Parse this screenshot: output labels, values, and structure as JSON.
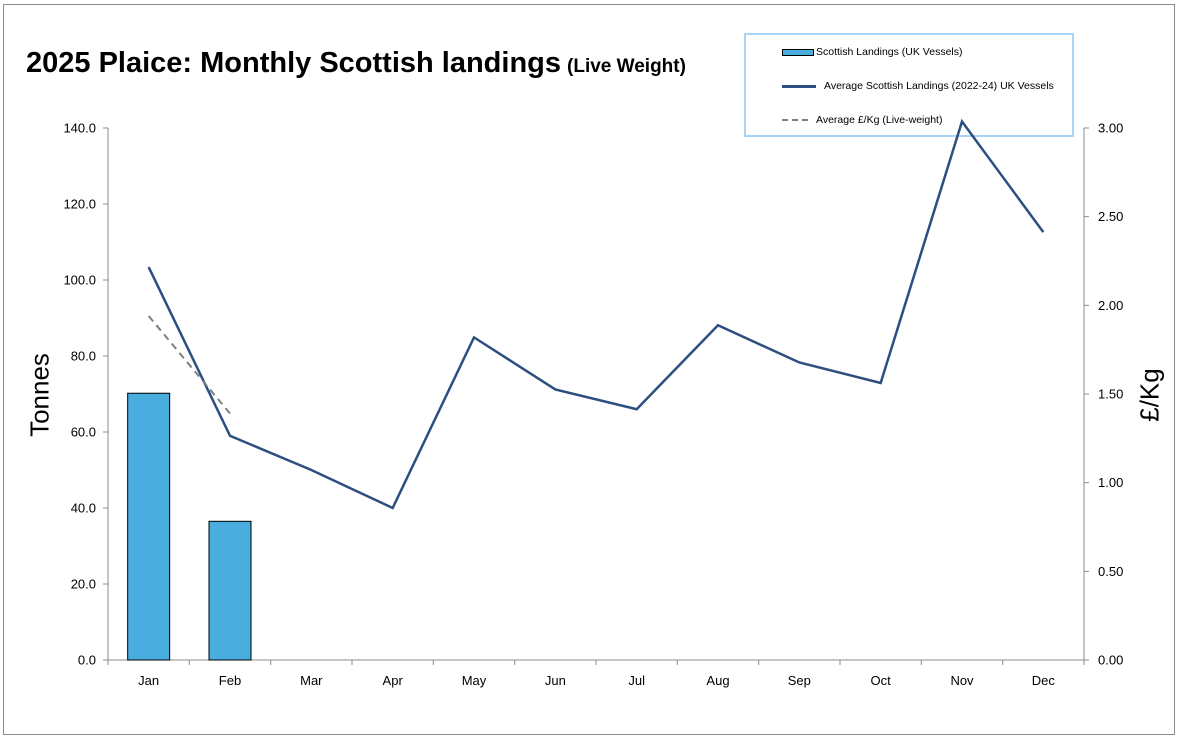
{
  "chart_data": {
    "type": "bar",
    "title": "2025 Plaice: Monthly Scottish landings",
    "subtitle": "(Live Weight)",
    "ylabel": "Tonnes",
    "y2label": "£/Kg",
    "xlabel": "",
    "categories": [
      "Jan",
      "Feb",
      "Mar",
      "Apr",
      "May",
      "Jun",
      "Jul",
      "Aug",
      "Sep",
      "Oct",
      "Nov",
      "Dec"
    ],
    "ylim": [
      0,
      140
    ],
    "y2lim": [
      0,
      3
    ],
    "yticks": [
      "0.0",
      "20.0",
      "40.0",
      "60.0",
      "80.0",
      "100.0",
      "120.0",
      "140.0"
    ],
    "y2ticks": [
      "0.00",
      "0.50",
      "1.00",
      "1.50",
      "2.00",
      "2.50",
      "3.00"
    ],
    "grid": false,
    "legend_position": "top-right",
    "series": [
      {
        "name": "Scottish Landings (UK Vessels)",
        "type": "bar",
        "axis": "left",
        "color": "#4aade0",
        "values": [
          70.2,
          36.5,
          null,
          null,
          null,
          null,
          null,
          null,
          null,
          null,
          null,
          null
        ]
      },
      {
        "name": "Average Scottish Landings (2022-24) UK Vessels",
        "type": "line",
        "axis": "left",
        "color": "#2c4e80",
        "values": [
          103.4,
          59.0,
          50.0,
          40.0,
          84.9,
          71.2,
          66.0,
          88.1,
          78.3,
          72.9,
          141.7,
          112.6
        ]
      },
      {
        "name": "Average £/Kg (Live-weight)",
        "type": "line-dashed",
        "axis": "right",
        "color": "#7f7f7f",
        "values": [
          1.94,
          1.39,
          null,
          null,
          null,
          null,
          null,
          null,
          null,
          null,
          null,
          null
        ]
      }
    ]
  }
}
